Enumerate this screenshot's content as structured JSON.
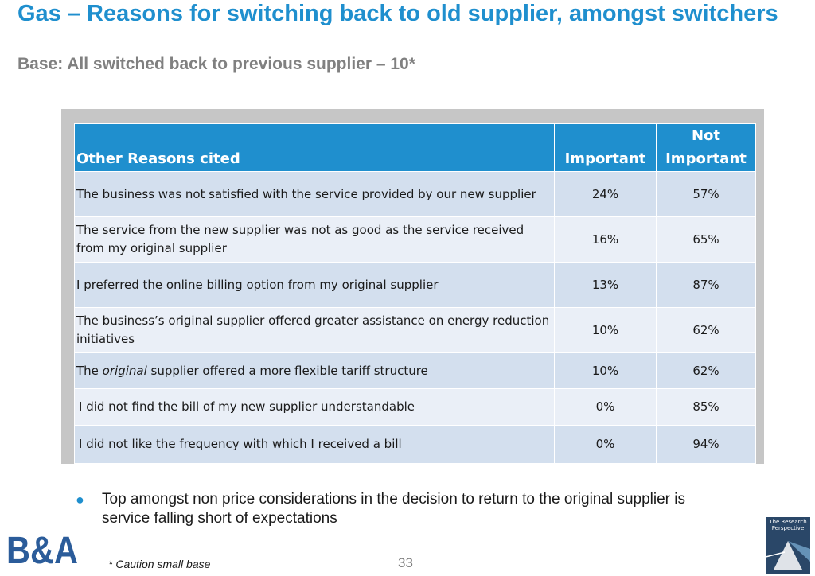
{
  "header": {
    "title": "Gas – Reasons for switching back to old supplier, amongst switchers",
    "subtitle": "Base: All switched back to previous supplier – 10*"
  },
  "table": {
    "headers": {
      "reason": "Other Reasons cited",
      "important": "Important",
      "not_important_line1": "Not",
      "not_important_line2": "Important"
    },
    "rows": [
      {
        "reason": "The business was not satisfied with the service provided by our new supplier",
        "important": "24%",
        "not_important": "57%"
      },
      {
        "reason": "The service from the new supplier was not as good as the service received from my original supplier",
        "important": "16%",
        "not_important": "65%"
      },
      {
        "reason": "I preferred the online billing option from my original supplier",
        "important": "13%",
        "not_important": "87%"
      },
      {
        "reason": "The business’s original supplier offered greater assistance on energy reduction initiatives",
        "important": "10%",
        "not_important": "62%"
      },
      {
        "reason_prefix": "The ",
        "reason_emphasis": "original",
        "reason_suffix": " supplier offered  a more flexible tariff structure",
        "important": "10%",
        "not_important": "62%"
      },
      {
        "reason": "I did not find the bill of my new supplier understandable",
        "important": "0%",
        "not_important": "85%"
      },
      {
        "reason": "I did not like the frequency with which I received a bill",
        "important": "0%",
        "not_important": "94%"
      }
    ]
  },
  "bullet": {
    "text": "Top amongst non price considerations in the decision to return to the original supplier is service falling short of expectations"
  },
  "footer": {
    "caution": "* Caution small base",
    "page_number": "33",
    "logo_text": "B&A",
    "rp_logo_text": "The Research Perspective"
  },
  "colors": {
    "accent": "#1f8fce",
    "row_odd": "#d3dfee",
    "row_even": "#eaeff7",
    "subtitle": "#808080",
    "logo": "#2b5c9a"
  }
}
